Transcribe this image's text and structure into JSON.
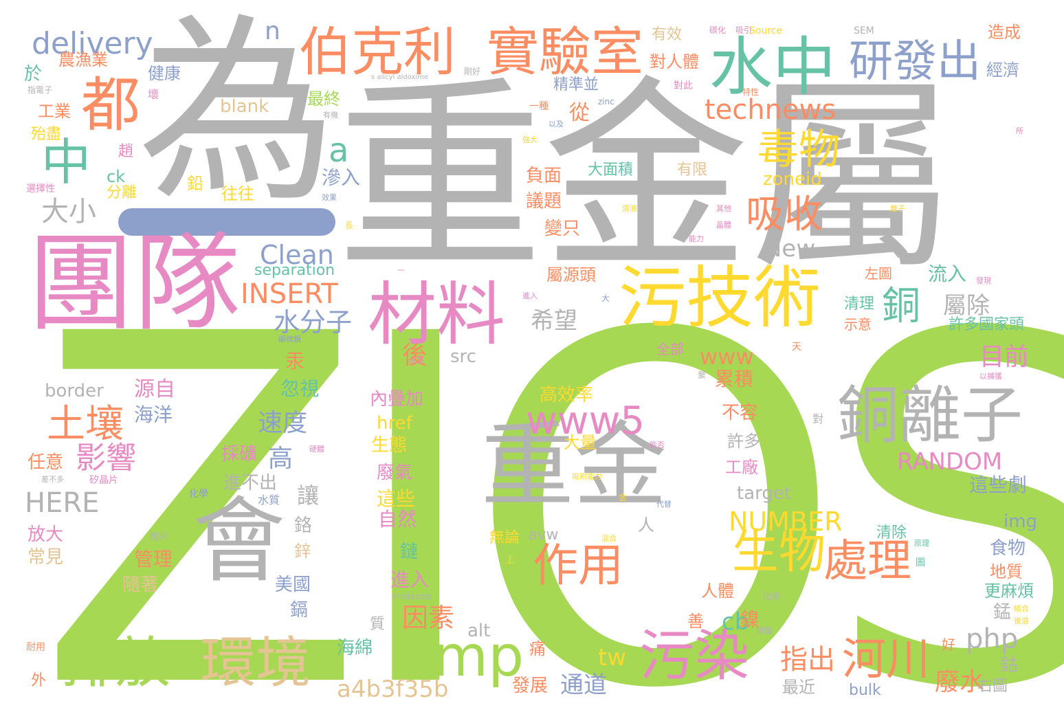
{
  "palette": {
    "gray": "#b3b3b3",
    "green": "#a6d854",
    "pink": "#e78ac3",
    "orange": "#fc8d62",
    "teal": "#66c2a5",
    "blue": "#8da0cb",
    "yellow": "#ffd92f",
    "tan": "#e5c494"
  },
  "words": [
    {
      "text": "ZIOS",
      "color": "green"
    },
    {
      "text": "為",
      "color": "gray"
    },
    {
      "text": "重金屬",
      "color": "gray"
    },
    {
      "text": "團隊",
      "color": "pink"
    },
    {
      "text": "重金",
      "color": "gray"
    },
    {
      "text": "會",
      "color": "gray"
    },
    {
      "text": "污技術",
      "color": "yellow"
    },
    {
      "text": "材料",
      "color": "pink"
    },
    {
      "text": "伯克利",
      "color": "orange"
    },
    {
      "text": "實驗室",
      "color": "orange"
    },
    {
      "text": "水中",
      "color": "teal"
    },
    {
      "text": "研發出",
      "color": "blue"
    },
    {
      "text": "都",
      "color": "orange"
    },
    {
      "text": "中",
      "color": "teal"
    },
    {
      "text": "delivery",
      "color": "blue"
    },
    {
      "text": "n",
      "color": "blue"
    },
    {
      "text": "technews",
      "color": "orange"
    },
    {
      "text": "毒物",
      "color": "yellow"
    },
    {
      "text": "a",
      "color": "teal"
    },
    {
      "text": "吸收",
      "color": "orange"
    },
    {
      "text": "銅",
      "color": "teal"
    },
    {
      "text": "銅離子",
      "color": "gray"
    },
    {
      "text": "www5",
      "color": "pink"
    },
    {
      "text": "作用",
      "color": "orange"
    },
    {
      "text": "生物",
      "color": "yellow"
    },
    {
      "text": "處理",
      "color": "orange"
    },
    {
      "text": "amp",
      "color": "green"
    },
    {
      "text": "污染",
      "color": "pink"
    },
    {
      "text": "排放",
      "color": "green"
    },
    {
      "text": "環境",
      "color": "tan"
    },
    {
      "text": "河川",
      "color": "orange"
    },
    {
      "text": "土壤",
      "color": "orange"
    },
    {
      "text": "影響",
      "color": "pink"
    },
    {
      "text": "HERE",
      "color": "gray"
    },
    {
      "text": "INSERT",
      "color": "orange"
    },
    {
      "text": "Clean",
      "color": "blue"
    },
    {
      "text": "separation",
      "color": "teal"
    },
    {
      "text": "水分子",
      "color": "blue"
    },
    {
      "text": "NUMBER",
      "color": "yellow"
    },
    {
      "text": "RANDOM",
      "color": "pink"
    },
    {
      "text": "a4b3f35b",
      "color": "tan"
    },
    {
      "text": "php",
      "color": "gray"
    },
    {
      "text": "www",
      "color": "orange"
    },
    {
      "text": "cb",
      "color": "teal"
    },
    {
      "text": "New",
      "color": "gray"
    },
    {
      "text": "zoneid",
      "color": "yellow"
    },
    {
      "text": "大小",
      "color": "gray"
    },
    {
      "text": "blank",
      "color": "tan"
    },
    {
      "text": "border",
      "color": "gray"
    },
    {
      "text": "target",
      "color": "gray"
    },
    {
      "text": "src",
      "color": "gray"
    },
    {
      "text": "href",
      "color": "yellow"
    },
    {
      "text": "img",
      "color": "blue"
    },
    {
      "text": "alt",
      "color": "gray"
    },
    {
      "text": "avw",
      "color": "gray"
    },
    {
      "text": "tw",
      "color": "yellow"
    },
    {
      "text": "ck",
      "color": "teal"
    },
    {
      "text": "bulk",
      "color": "blue"
    },
    {
      "text": "Source",
      "color": "yellow"
    },
    {
      "text": "SEM",
      "color": "gray"
    },
    {
      "text": "s alicyl aldoxime",
      "color": "gray"
    },
    {
      "text": "zinc",
      "color": "blue"
    },
    {
      "text": "imidazole",
      "color": "gray"
    },
    {
      "text": "希望",
      "color": "gray"
    },
    {
      "text": "屬除",
      "color": "gray"
    },
    {
      "text": "速度",
      "color": "blue"
    },
    {
      "text": "高",
      "color": "blue"
    },
    {
      "text": "讓",
      "color": "gray"
    },
    {
      "text": "後",
      "color": "orange"
    },
    {
      "text": "因素",
      "color": "orange"
    },
    {
      "text": "目前",
      "color": "pink"
    },
    {
      "text": "通道",
      "color": "blue"
    },
    {
      "text": "指出",
      "color": "orange"
    },
    {
      "text": "廢水",
      "color": "orange"
    },
    {
      "text": "累積",
      "color": "orange"
    },
    {
      "text": "鎳",
      "color": "orange"
    },
    {
      "text": "農漁業",
      "color": "orange"
    },
    {
      "text": "於",
      "color": "teal"
    },
    {
      "text": "健康",
      "color": "blue"
    },
    {
      "text": "工業",
      "color": "orange"
    },
    {
      "text": "最終",
      "color": "green"
    },
    {
      "text": "精準並",
      "color": "blue"
    },
    {
      "text": "從",
      "color": "orange"
    },
    {
      "text": "有效",
      "color": "tan"
    },
    {
      "text": "對人體",
      "color": "orange"
    },
    {
      "text": "造成",
      "color": "orange"
    },
    {
      "text": "經濟",
      "color": "blue"
    },
    {
      "text": "負面",
      "color": "orange"
    },
    {
      "text": "議題",
      "color": "orange"
    },
    {
      "text": "變只",
      "color": "orange"
    },
    {
      "text": "大面積",
      "color": "teal"
    },
    {
      "text": "有限",
      "color": "tan"
    },
    {
      "text": "滲入",
      "color": "blue"
    },
    {
      "text": "往往",
      "color": "yellow"
    },
    {
      "text": "鉛",
      "color": "yellow"
    },
    {
      "text": "分離",
      "color": "yellow"
    },
    {
      "text": "趙",
      "color": "pink"
    },
    {
      "text": "屬源頭",
      "color": "orange"
    },
    {
      "text": "流入",
      "color": "teal"
    },
    {
      "text": "清理",
      "color": "teal"
    },
    {
      "text": "許多國家頭",
      "color": "teal"
    },
    {
      "text": "內疊加",
      "color": "pink"
    },
    {
      "text": "高效率",
      "color": "yellow"
    },
    {
      "text": "不容",
      "color": "orange"
    },
    {
      "text": "許多",
      "color": "gray"
    },
    {
      "text": "工廠",
      "color": "pink"
    },
    {
      "text": "這些劇",
      "color": "blue"
    },
    {
      "text": "源自",
      "color": "pink"
    },
    {
      "text": "海洋",
      "color": "blue"
    },
    {
      "text": "汞",
      "color": "orange"
    },
    {
      "text": "忽視",
      "color": "teal"
    },
    {
      "text": "採礦",
      "color": "pink"
    },
    {
      "text": "進不出",
      "color": "gray"
    },
    {
      "text": "任意",
      "color": "orange"
    },
    {
      "text": "放大",
      "color": "pink"
    },
    {
      "text": "常見",
      "color": "tan"
    },
    {
      "text": "管理",
      "color": "orange"
    },
    {
      "text": "隨著",
      "color": "tan"
    },
    {
      "text": "美國",
      "color": "blue"
    },
    {
      "text": "鎘",
      "color": "blue"
    },
    {
      "text": "鉻",
      "color": "gray"
    },
    {
      "text": "鋅",
      "color": "tan"
    },
    {
      "text": "生態",
      "color": "yellow"
    },
    {
      "text": "廢氣",
      "color": "pink"
    },
    {
      "text": "這些",
      "color": "yellow"
    },
    {
      "text": "自然",
      "color": "pink"
    },
    {
      "text": "鏈",
      "color": "teal"
    },
    {
      "text": "進入",
      "color": "pink"
    },
    {
      "text": "大量",
      "color": "yellow"
    },
    {
      "text": "無論",
      "color": "yellow"
    },
    {
      "text": "清除",
      "color": "teal"
    },
    {
      "text": "食物",
      "color": "blue"
    },
    {
      "text": "地質",
      "color": "orange"
    },
    {
      "text": "更麻煩",
      "color": "teal"
    },
    {
      "text": "錳",
      "color": "gray"
    },
    {
      "text": "人體",
      "color": "orange"
    },
    {
      "text": "善",
      "color": "orange"
    },
    {
      "text": "人",
      "color": "gray"
    },
    {
      "text": "質",
      "color": "gray"
    },
    {
      "text": "海綿",
      "color": "teal"
    },
    {
      "text": "痛",
      "color": "orange"
    },
    {
      "text": "發展",
      "color": "orange"
    },
    {
      "text": "最近",
      "color": "gray"
    },
    {
      "text": "鈷",
      "color": "gray"
    },
    {
      "text": "右圖",
      "color": "gray"
    },
    {
      "text": "外",
      "color": "orange"
    },
    {
      "text": "好",
      "color": "orange"
    },
    {
      "text": "全部",
      "color": "pink"
    },
    {
      "text": "左圖",
      "color": "orange"
    },
    {
      "text": "示意",
      "color": "orange"
    },
    {
      "text": "殆盡",
      "color": "yellow"
    },
    {
      "text": "選擇性",
      "color": "pink"
    },
    {
      "text": "壞",
      "color": "pink"
    },
    {
      "text": "指電子",
      "color": "gray"
    },
    {
      "text": "矽晶片",
      "color": "pink"
    },
    {
      "text": "照片",
      "color": "gray"
    },
    {
      "text": "化學",
      "color": "blue"
    },
    {
      "text": "水質",
      "color": "blue"
    },
    {
      "text": "一種",
      "color": "orange"
    },
    {
      "text": "對",
      "color": "gray"
    },
    {
      "text": "對此",
      "color": "pink"
    },
    {
      "text": "剛好",
      "color": "gray"
    },
    {
      "text": "上",
      "color": "yellow"
    },
    {
      "text": "天",
      "color": "orange"
    },
    {
      "text": "耐用",
      "color": "orange"
    },
    {
      "text": "出現",
      "color": "gray"
    },
    {
      "text": "開發",
      "color": "gray"
    },
    {
      "text": "碳化",
      "color": "pink"
    },
    {
      "text": "吸引",
      "color": "pink"
    },
    {
      "text": "有機",
      "color": "gray"
    },
    {
      "text": "以及",
      "color": "blue"
    },
    {
      "text": "強大",
      "color": "yellow"
    },
    {
      "text": "效果",
      "color": "blue"
    },
    {
      "text": "吸附能力",
      "color": "yellow"
    },
    {
      "text": "代替",
      "color": "blue"
    },
    {
      "text": "發現",
      "color": "pink"
    },
    {
      "text": "能否",
      "color": "pink"
    },
    {
      "text": "混合",
      "color": "yellow"
    },
    {
      "text": "顯微鏡",
      "color": "blue"
    },
    {
      "text": "以捕獲",
      "color": "pink"
    },
    {
      "text": "其他",
      "color": "pink"
    },
    {
      "text": "結合",
      "color": "yellow"
    },
    {
      "text": "後溶",
      "color": "yellow"
    },
    {
      "text": "差不多",
      "color": "gray"
    },
    {
      "text": "硬體",
      "color": "pink"
    },
    {
      "text": "原理",
      "color": "teal"
    },
    {
      "text": "晶體",
      "color": "pink"
    },
    {
      "text": "進入",
      "color": "pink"
    },
    {
      "text": "溶液",
      "color": "yellow"
    },
    {
      "text": "反應",
      "color": "pink"
    },
    {
      "text": "離子",
      "color": "yellow"
    },
    {
      "text": "圖",
      "color": "teal"
    },
    {
      "text": "長",
      "color": "yellow"
    },
    {
      "text": "大",
      "color": "blue"
    },
    {
      "text": "聚",
      "color": "gray"
    },
    {
      "text": "金",
      "color": "yellow"
    },
    {
      "text": "特性",
      "color": "orange"
    },
    {
      "text": "能力",
      "color": "pink"
    },
    {
      "text": "一",
      "color": "pink"
    },
    {
      "text": "所",
      "color": "pink"
    }
  ]
}
